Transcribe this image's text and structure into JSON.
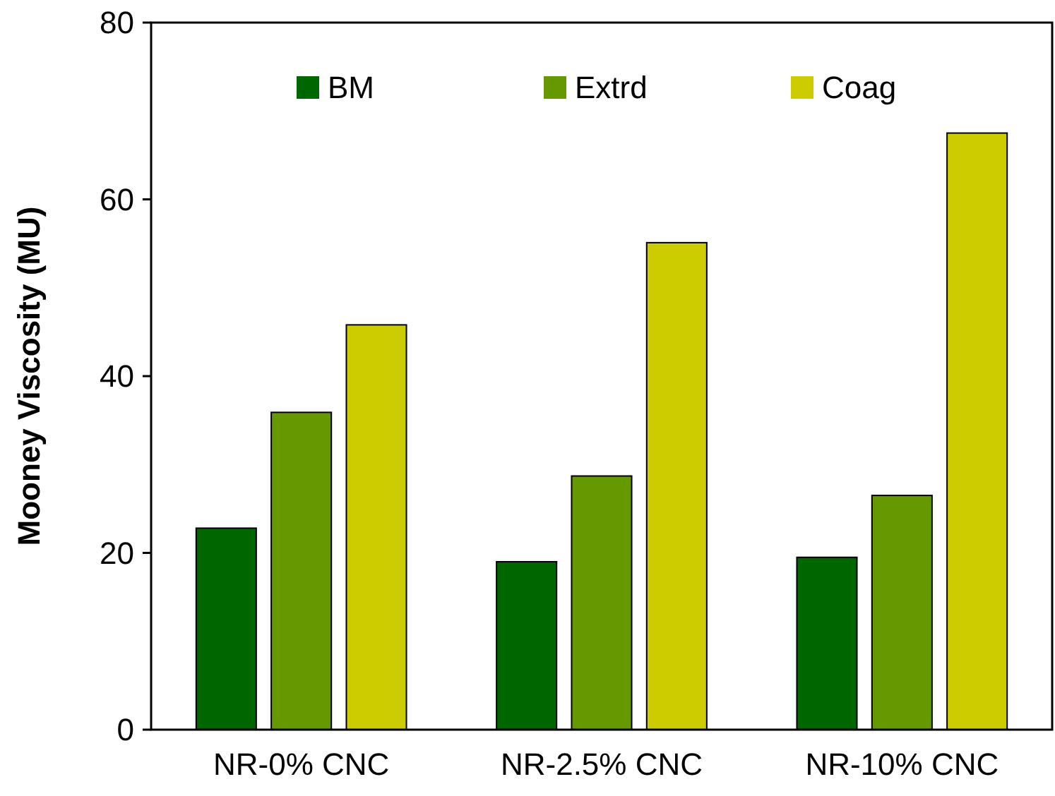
{
  "chart_data": {
    "type": "bar",
    "ylabel": "Mooney Viscosity (MU)",
    "categories": [
      "NR-0% CNC",
      "NR-2.5% CNC",
      "NR-10% CNC"
    ],
    "series": [
      {
        "name": "BM",
        "color": "#006600",
        "values": [
          22.8,
          19,
          19.5
        ]
      },
      {
        "name": "Extrd",
        "color": "#669900",
        "values": [
          35.9,
          28.7,
          26.5
        ]
      },
      {
        "name": "Coag",
        "color": "#cccc00",
        "values": [
          45.8,
          55.1,
          67.5
        ]
      }
    ],
    "ylim": [
      0,
      80
    ],
    "yticks": [
      0,
      20,
      40,
      60,
      80
    ],
    "grid": false,
    "legend": "top"
  }
}
